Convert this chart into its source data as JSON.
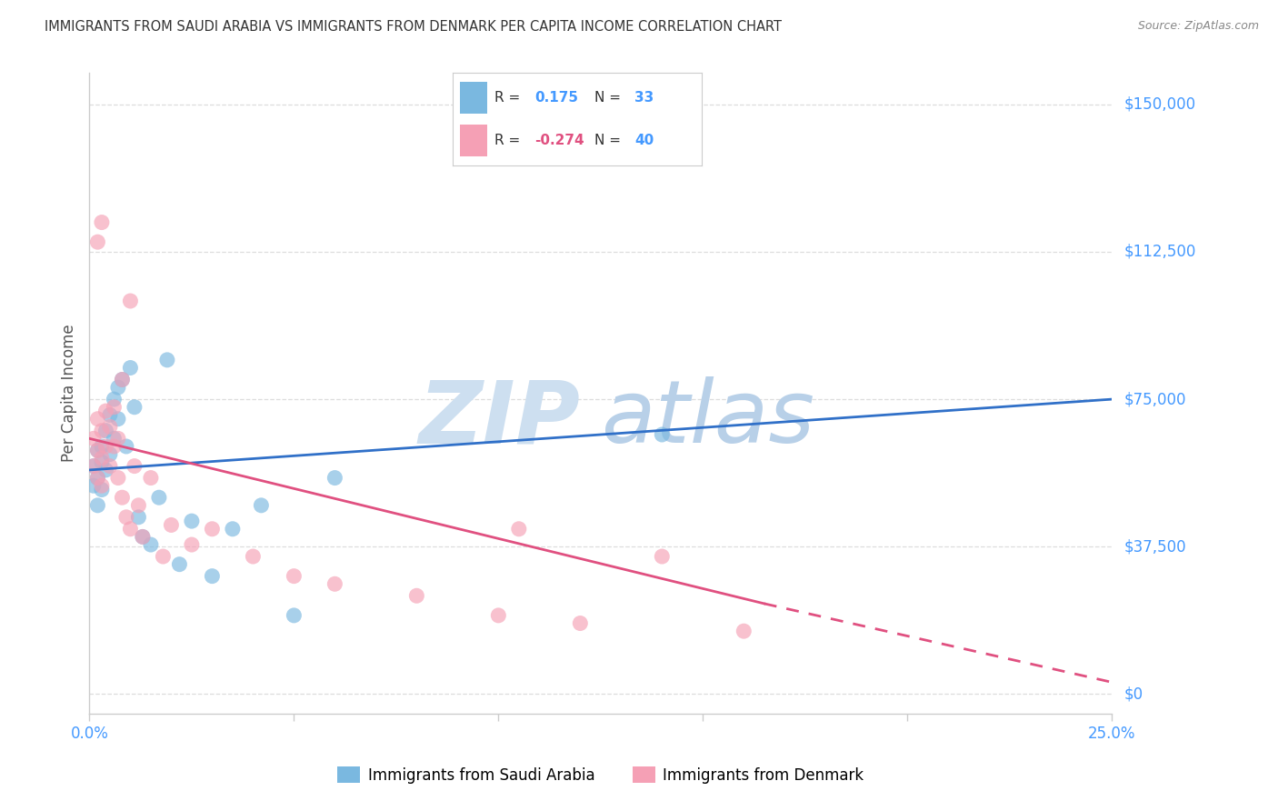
{
  "title": "IMMIGRANTS FROM SAUDI ARABIA VS IMMIGRANTS FROM DENMARK PER CAPITA INCOME CORRELATION CHART",
  "source": "Source: ZipAtlas.com",
  "ylabel": "Per Capita Income",
  "xlim": [
    0,
    0.25
  ],
  "ylim": [
    -5000,
    158000
  ],
  "yticks": [
    0,
    37500,
    75000,
    112500,
    150000
  ],
  "ytick_labels": [
    "$0",
    "$37,500",
    "$75,000",
    "$112,500",
    "$150,000"
  ],
  "blue_R": "0.175",
  "blue_N": "33",
  "pink_R": "-0.274",
  "pink_N": "40",
  "blue_scatter_color": "#7ab8e0",
  "pink_scatter_color": "#f5a0b5",
  "blue_line_color": "#3070c8",
  "pink_line_color": "#e05080",
  "watermark_color": "#cddff0",
  "watermark_zip": "ZIP",
  "watermark_atlas": "atlas",
  "legend_label_blue": "Immigrants from Saudi Arabia",
  "legend_label_pink": "Immigrants from Denmark",
  "blue_line": [
    [
      0.0,
      57000
    ],
    [
      0.25,
      75000
    ]
  ],
  "pink_line_solid": [
    [
      0.0,
      65000
    ],
    [
      0.165,
      23000
    ]
  ],
  "pink_line_dash": [
    [
      0.165,
      23000
    ],
    [
      0.25,
      3000
    ]
  ],
  "blue_x": [
    0.001,
    0.001,
    0.002,
    0.002,
    0.002,
    0.003,
    0.003,
    0.003,
    0.004,
    0.004,
    0.005,
    0.005,
    0.006,
    0.006,
    0.007,
    0.007,
    0.008,
    0.009,
    0.01,
    0.011,
    0.012,
    0.013,
    0.015,
    0.017,
    0.019,
    0.022,
    0.025,
    0.03,
    0.035,
    0.042,
    0.05,
    0.06,
    0.14
  ],
  "blue_y": [
    58000,
    53000,
    62000,
    55000,
    48000,
    63000,
    59000,
    52000,
    67000,
    57000,
    71000,
    61000,
    75000,
    65000,
    78000,
    70000,
    80000,
    63000,
    83000,
    73000,
    45000,
    40000,
    38000,
    50000,
    85000,
    33000,
    44000,
    30000,
    42000,
    48000,
    20000,
    55000,
    66000
  ],
  "pink_x": [
    0.001,
    0.001,
    0.002,
    0.002,
    0.002,
    0.003,
    0.003,
    0.003,
    0.004,
    0.004,
    0.005,
    0.005,
    0.006,
    0.006,
    0.007,
    0.007,
    0.008,
    0.009,
    0.01,
    0.011,
    0.012,
    0.013,
    0.015,
    0.018,
    0.02,
    0.025,
    0.03,
    0.04,
    0.05,
    0.06,
    0.08,
    0.1,
    0.105,
    0.12,
    0.14,
    0.16,
    0.002,
    0.003,
    0.008,
    0.01
  ],
  "pink_y": [
    65000,
    58000,
    70000,
    62000,
    55000,
    67000,
    60000,
    53000,
    72000,
    63000,
    68000,
    58000,
    73000,
    63000,
    55000,
    65000,
    50000,
    45000,
    42000,
    58000,
    48000,
    40000,
    55000,
    35000,
    43000,
    38000,
    42000,
    35000,
    30000,
    28000,
    25000,
    20000,
    42000,
    18000,
    35000,
    16000,
    115000,
    120000,
    80000,
    100000
  ],
  "xtick_positions": [
    0.0,
    0.05,
    0.1,
    0.15,
    0.2,
    0.25
  ],
  "grid_color": "#dddddd",
  "axis_color": "#cccccc",
  "ytick_color": "#4499ff",
  "title_color": "#333333",
  "source_color": "#888888"
}
